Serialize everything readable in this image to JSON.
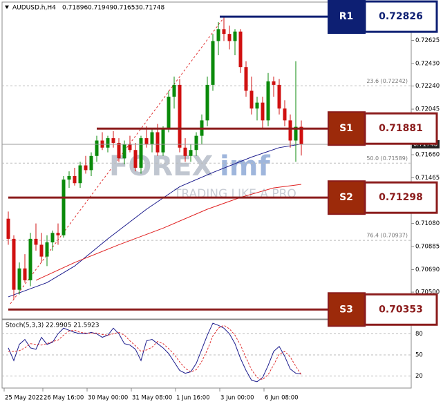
{
  "chart_data": [
    {
      "type": "candlestick",
      "symbol": "AUDUSD.h,H4",
      "categories": [
        "25 May 2022",
        null,
        null,
        null,
        null,
        null,
        null,
        "26 May 16:00",
        null,
        null,
        null,
        null,
        null,
        null,
        null,
        "30 May 00:00",
        null,
        null,
        null,
        null,
        null,
        null,
        null,
        "31 May 08:00",
        null,
        null,
        null,
        null,
        null,
        null,
        null,
        "1 Jun 16:00",
        null,
        null,
        null,
        null,
        null,
        null,
        null,
        "3 Jun 00:00",
        null,
        null,
        null,
        null,
        null,
        null,
        null,
        "6 Jun 08:00",
        null,
        null,
        null,
        null,
        null,
        null
      ],
      "open": [
        0.7112,
        0.7095,
        0.7052,
        0.707,
        0.706,
        0.7095,
        0.709,
        0.708,
        0.7092,
        0.71,
        0.7098,
        0.7145,
        0.7148,
        0.7142,
        0.7157,
        0.7153,
        0.7165,
        0.7178,
        0.7172,
        0.718,
        0.7176,
        0.7163,
        0.7175,
        0.717,
        0.7155,
        0.718,
        0.7175,
        0.7185,
        0.7168,
        0.7188,
        0.7215,
        0.7225,
        0.7172,
        0.7165,
        0.717,
        0.7182,
        0.7195,
        0.7225,
        0.7262,
        0.7272,
        0.7268,
        0.7262,
        0.727,
        0.724,
        0.722,
        0.7205,
        0.721,
        0.7195,
        0.7228,
        0.7225,
        0.7205,
        0.7195,
        0.7178,
        0.71896
      ],
      "high": [
        0.7118,
        0.7098,
        0.7075,
        0.7082,
        0.71,
        0.7108,
        0.71,
        0.7098,
        0.7102,
        0.7108,
        0.7148,
        0.7152,
        0.7155,
        0.716,
        0.7165,
        0.7168,
        0.7182,
        0.7185,
        0.7182,
        0.7186,
        0.718,
        0.7178,
        0.7182,
        0.7176,
        0.7182,
        0.719,
        0.7188,
        0.7192,
        0.719,
        0.722,
        0.7232,
        0.723,
        0.718,
        0.7175,
        0.7185,
        0.72,
        0.7232,
        0.7268,
        0.7278,
        0.72826,
        0.7275,
        0.7272,
        0.7272,
        0.7245,
        0.7232,
        0.7215,
        0.7215,
        0.7235,
        0.7232,
        0.723,
        0.7212,
        0.72,
        0.7245,
        0.71949
      ],
      "low": [
        0.709,
        0.7044,
        0.7048,
        0.7058,
        0.7055,
        0.7085,
        0.7075,
        0.7072,
        0.7085,
        0.709,
        0.7096,
        0.7138,
        0.714,
        0.7138,
        0.715,
        0.7148,
        0.716,
        0.717,
        0.7168,
        0.7172,
        0.716,
        0.7158,
        0.7168,
        0.7152,
        0.715,
        0.7172,
        0.7168,
        0.7165,
        0.7165,
        0.7185,
        0.7205,
        0.7168,
        0.716,
        0.716,
        0.7165,
        0.7175,
        0.719,
        0.722,
        0.725,
        0.7262,
        0.7255,
        0.725,
        0.7235,
        0.7215,
        0.72,
        0.7195,
        0.7188,
        0.719,
        0.7215,
        0.72,
        0.719,
        0.7172,
        0.716,
        0.71653
      ],
      "close": [
        0.7095,
        0.7052,
        0.707,
        0.706,
        0.7095,
        0.709,
        0.708,
        0.7092,
        0.71,
        0.7098,
        0.7145,
        0.7148,
        0.7142,
        0.7157,
        0.7153,
        0.7165,
        0.7178,
        0.7172,
        0.718,
        0.7176,
        0.7163,
        0.7175,
        0.717,
        0.7155,
        0.718,
        0.7175,
        0.7185,
        0.7168,
        0.7188,
        0.7215,
        0.7225,
        0.7172,
        0.7165,
        0.717,
        0.7182,
        0.7195,
        0.7225,
        0.7262,
        0.7272,
        0.7268,
        0.7262,
        0.727,
        0.724,
        0.722,
        0.7205,
        0.721,
        0.7195,
        0.7228,
        0.7225,
        0.7205,
        0.7195,
        0.7178,
        0.71896,
        0.71748
      ],
      "up_color": "#0a8a0a",
      "down_color": "#d01010",
      "ma": [
        {
          "color": "#1a1a8c",
          "x": [
            0,
            7,
            12,
            18,
            25,
            31,
            37,
            44,
            49,
            53
          ],
          "values": [
            0.7046,
            0.7058,
            0.7072,
            0.7095,
            0.712,
            0.7139,
            0.7151,
            0.7164,
            0.7172,
            0.7175
          ]
        },
        {
          "color": "#e02020",
          "x": [
            5,
            12,
            20,
            28,
            36,
            42,
            48,
            53
          ],
          "values": [
            0.706,
            0.7075,
            0.709,
            0.7104,
            0.712,
            0.713,
            0.7138,
            0.7141
          ]
        }
      ],
      "ylim": [
        0.70273,
        0.72949
      ],
      "yticks": [
        {
          "value": 0.72625,
          "label": "0.72625"
        },
        {
          "value": 0.7243,
          "label": "0.72430"
        },
        {
          "value": 0.7224,
          "label": "0.72240"
        },
        {
          "value": 0.72045,
          "label": "0.72045"
        },
        {
          "value": 0.7166,
          "label": "0.71660"
        },
        {
          "value": 0.71465,
          "label": "0.71465"
        },
        {
          "value": 0.7108,
          "label": "0.71080"
        },
        {
          "value": 0.70885,
          "label": "0.70885"
        },
        {
          "value": 0.7069,
          "label": "0.70690"
        },
        {
          "value": 0.705,
          "label": "0.70500"
        }
      ],
      "fib_levels": [
        {
          "value": 0.72242,
          "label": "23.6 (0.72242)"
        },
        {
          "value": 0.71589,
          "label": "50.0 (0.71589)"
        },
        {
          "value": 0.70937,
          "label": "76.4 (0.70937)"
        }
      ],
      "levels": [
        {
          "name": "R1",
          "value": 0.72826,
          "color": "#0d1f73",
          "fill": "#0d1f73"
        },
        {
          "name": "S1",
          "value": 0.71881,
          "color": "#8b1c1c",
          "fill": "#9c2a0a"
        },
        {
          "name": "S2",
          "value": 0.71298,
          "color": "#8b1c1c",
          "fill": "#9c2a0a"
        },
        {
          "name": "S3",
          "value": 0.70353,
          "color": "#8b1c1c",
          "fill": "#9c2a0a"
        }
      ],
      "watermark": {
        "brand": "FOREX",
        "brand_suffix": "imf",
        "tagline": "TRADING LIKE A PRO"
      }
    },
    {
      "type": "line",
      "title": "Stoch(5,3,3) 22.9905 21.5923",
      "ylim": [
        3,
        100
      ],
      "yticks": [
        80,
        50,
        20
      ],
      "series": [
        {
          "color": "#1a1a8c",
          "dash": false,
          "values": [
            60,
            42,
            65,
            72,
            60,
            58,
            75,
            65,
            68,
            80,
            88,
            85,
            82,
            80,
            80,
            82,
            80,
            75,
            78,
            88,
            80,
            66,
            64,
            58,
            42,
            70,
            72,
            66,
            60,
            52,
            40,
            28,
            24,
            26,
            38,
            58,
            78,
            95,
            92,
            88,
            80,
            66,
            45,
            28,
            14,
            12,
            18,
            35,
            55,
            62,
            48,
            30,
            24,
            22.9905
          ]
        },
        {
          "color": "#e03030",
          "dash": true,
          "values": [
            55,
            55,
            56,
            60,
            66,
            65,
            64,
            66,
            69,
            71,
            78,
            84,
            85,
            82,
            81,
            81,
            81,
            79,
            78,
            80,
            82,
            78,
            70,
            63,
            55,
            57,
            61,
            69,
            66,
            59,
            51,
            40,
            31,
            26,
            29,
            41,
            57,
            77,
            88,
            92,
            87,
            78,
            64,
            46,
            29,
            18,
            15,
            22,
            36,
            51,
            55,
            47,
            34,
            21.5923
          ]
        }
      ]
    }
  ]
}
